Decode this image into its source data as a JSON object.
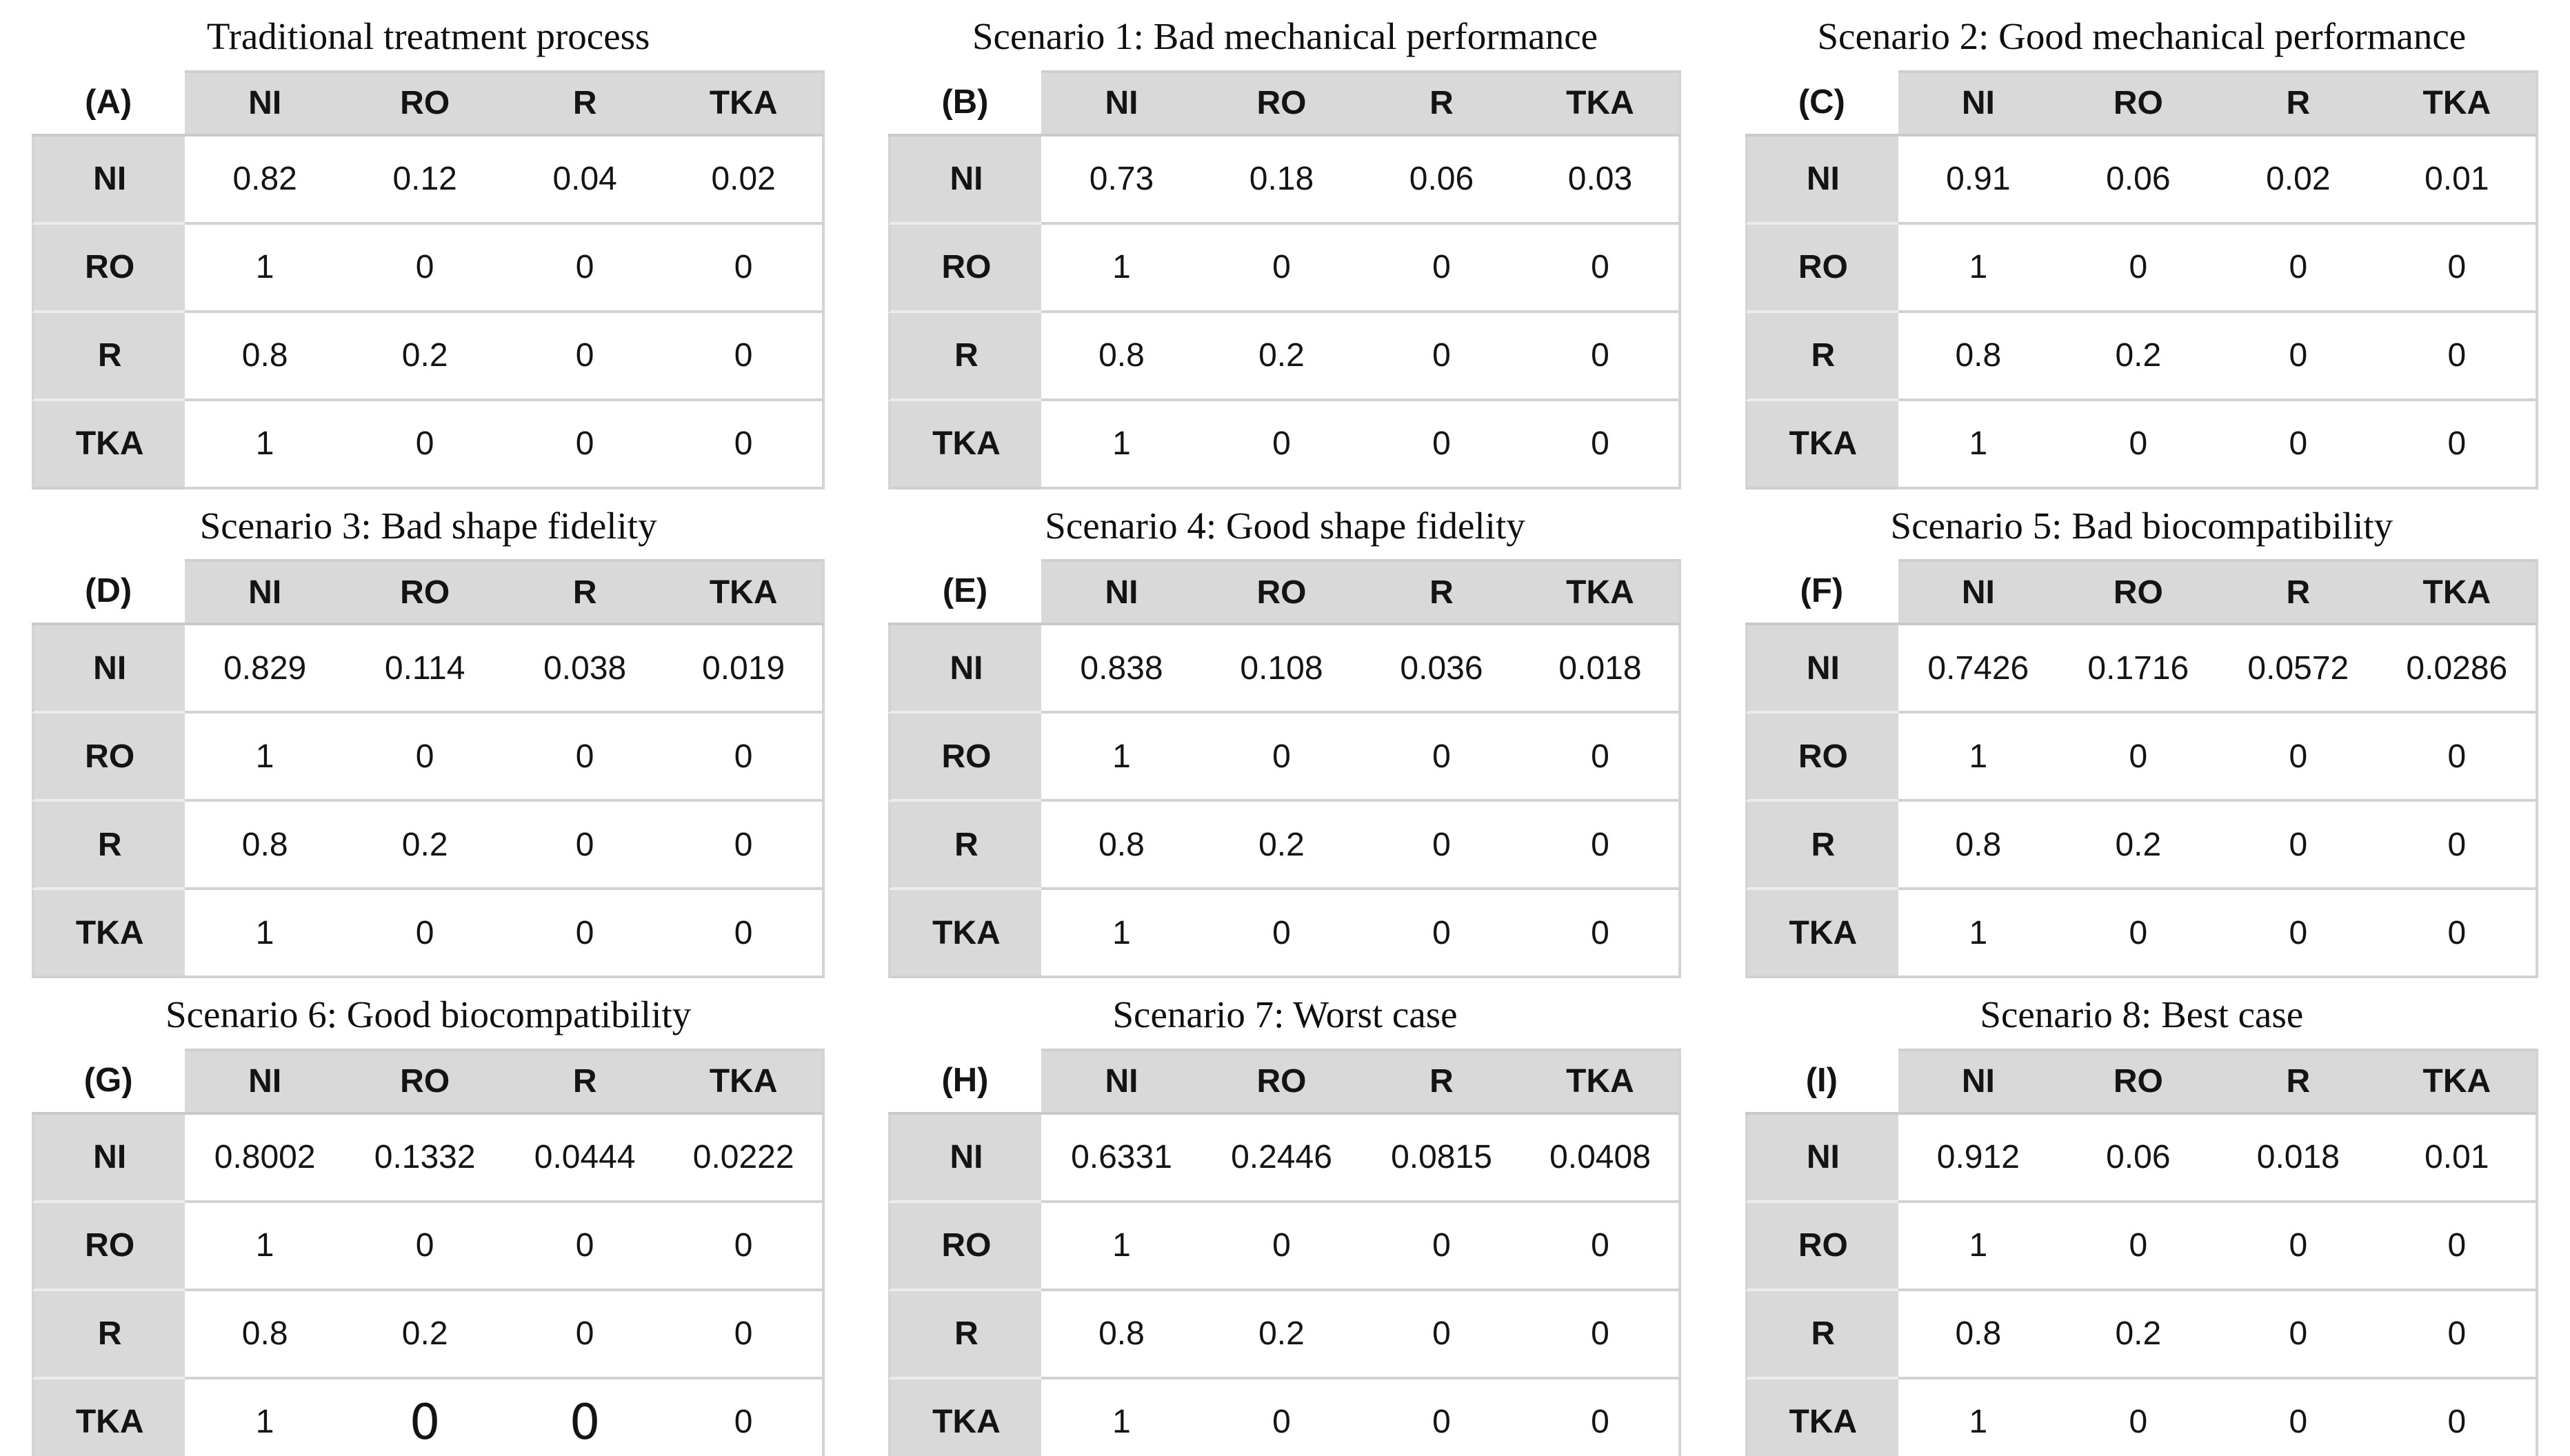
{
  "figure": {
    "description_colors": {
      "header_bg": "#d9d9d9",
      "row_header_bg": "#d9d9d9",
      "separator": "#d2d2d2",
      "text": "#141414",
      "page_bg": "#ffffff"
    }
  },
  "column_headers": [
    "NI",
    "RO",
    "R",
    "TKA"
  ],
  "row_headers": [
    "NI",
    "RO",
    "R",
    "TKA"
  ],
  "tables": [
    {
      "label": "(A)",
      "title": "Traditional treatment process",
      "rows": [
        [
          "0.82",
          "0.12",
          "0.04",
          "0.02"
        ],
        [
          "1",
          "0",
          "0",
          "0"
        ],
        [
          "0.8",
          "0.2",
          "0",
          "0"
        ],
        [
          "1",
          "0",
          "0",
          "0"
        ]
      ]
    },
    {
      "label": "(B)",
      "title": "Scenario 1: Bad mechanical performance",
      "rows": [
        [
          "0.73",
          "0.18",
          "0.06",
          "0.03"
        ],
        [
          "1",
          "0",
          "0",
          "0"
        ],
        [
          "0.8",
          "0.2",
          "0",
          "0"
        ],
        [
          "1",
          "0",
          "0",
          "0"
        ]
      ]
    },
    {
      "label": "(C)",
      "title": "Scenario 2: Good mechanical performance",
      "rows": [
        [
          "0.91",
          "0.06",
          "0.02",
          "0.01"
        ],
        [
          "1",
          "0",
          "0",
          "0"
        ],
        [
          "0.8",
          "0.2",
          "0",
          "0"
        ],
        [
          "1",
          "0",
          "0",
          "0"
        ]
      ]
    },
    {
      "label": "(D)",
      "title": "Scenario 3: Bad shape fidelity",
      "rows": [
        [
          "0.829",
          "0.114",
          "0.038",
          "0.019"
        ],
        [
          "1",
          "0",
          "0",
          "0"
        ],
        [
          "0.8",
          "0.2",
          "0",
          "0"
        ],
        [
          "1",
          "0",
          "0",
          "0"
        ]
      ]
    },
    {
      "label": "(E)",
      "title": "Scenario 4: Good shape fidelity",
      "rows": [
        [
          "0.838",
          "0.108",
          "0.036",
          "0.018"
        ],
        [
          "1",
          "0",
          "0",
          "0"
        ],
        [
          "0.8",
          "0.2",
          "0",
          "0"
        ],
        [
          "1",
          "0",
          "0",
          "0"
        ]
      ]
    },
    {
      "label": "(F)",
      "title": "Scenario 5: Bad biocompatibility",
      "rows": [
        [
          "0.7426",
          "0.1716",
          "0.0572",
          "0.0286"
        ],
        [
          "1",
          "0",
          "0",
          "0"
        ],
        [
          "0.8",
          "0.2",
          "0",
          "0"
        ],
        [
          "1",
          "0",
          "0",
          "0"
        ]
      ]
    },
    {
      "label": "(G)",
      "title": "Scenario 6: Good biocompatibility",
      "rows": [
        [
          "0.8002",
          "0.1332",
          "0.0444",
          "0.0222"
        ],
        [
          "1",
          "0",
          "0",
          "0"
        ],
        [
          "0.8",
          "0.2",
          "0",
          "0"
        ],
        [
          "1",
          "0",
          "0",
          "0"
        ]
      ],
      "oversized_cells": [
        [
          3,
          1
        ],
        [
          3,
          2
        ]
      ]
    },
    {
      "label": "(H)",
      "title": "Scenario 7: Worst case",
      "rows": [
        [
          "0.6331",
          "0.2446",
          "0.0815",
          "0.0408"
        ],
        [
          "1",
          "0",
          "0",
          "0"
        ],
        [
          "0.8",
          "0.2",
          "0",
          "0"
        ],
        [
          "1",
          "0",
          "0",
          "0"
        ]
      ]
    },
    {
      "label": "(I)",
      "title": "Scenario 8: Best case",
      "rows": [
        [
          "0.912",
          "0.06",
          "0.018",
          "0.01"
        ],
        [
          "1",
          "0",
          "0",
          "0"
        ],
        [
          "0.8",
          "0.2",
          "0",
          "0"
        ],
        [
          "1",
          "0",
          "0",
          "0"
        ]
      ]
    }
  ]
}
